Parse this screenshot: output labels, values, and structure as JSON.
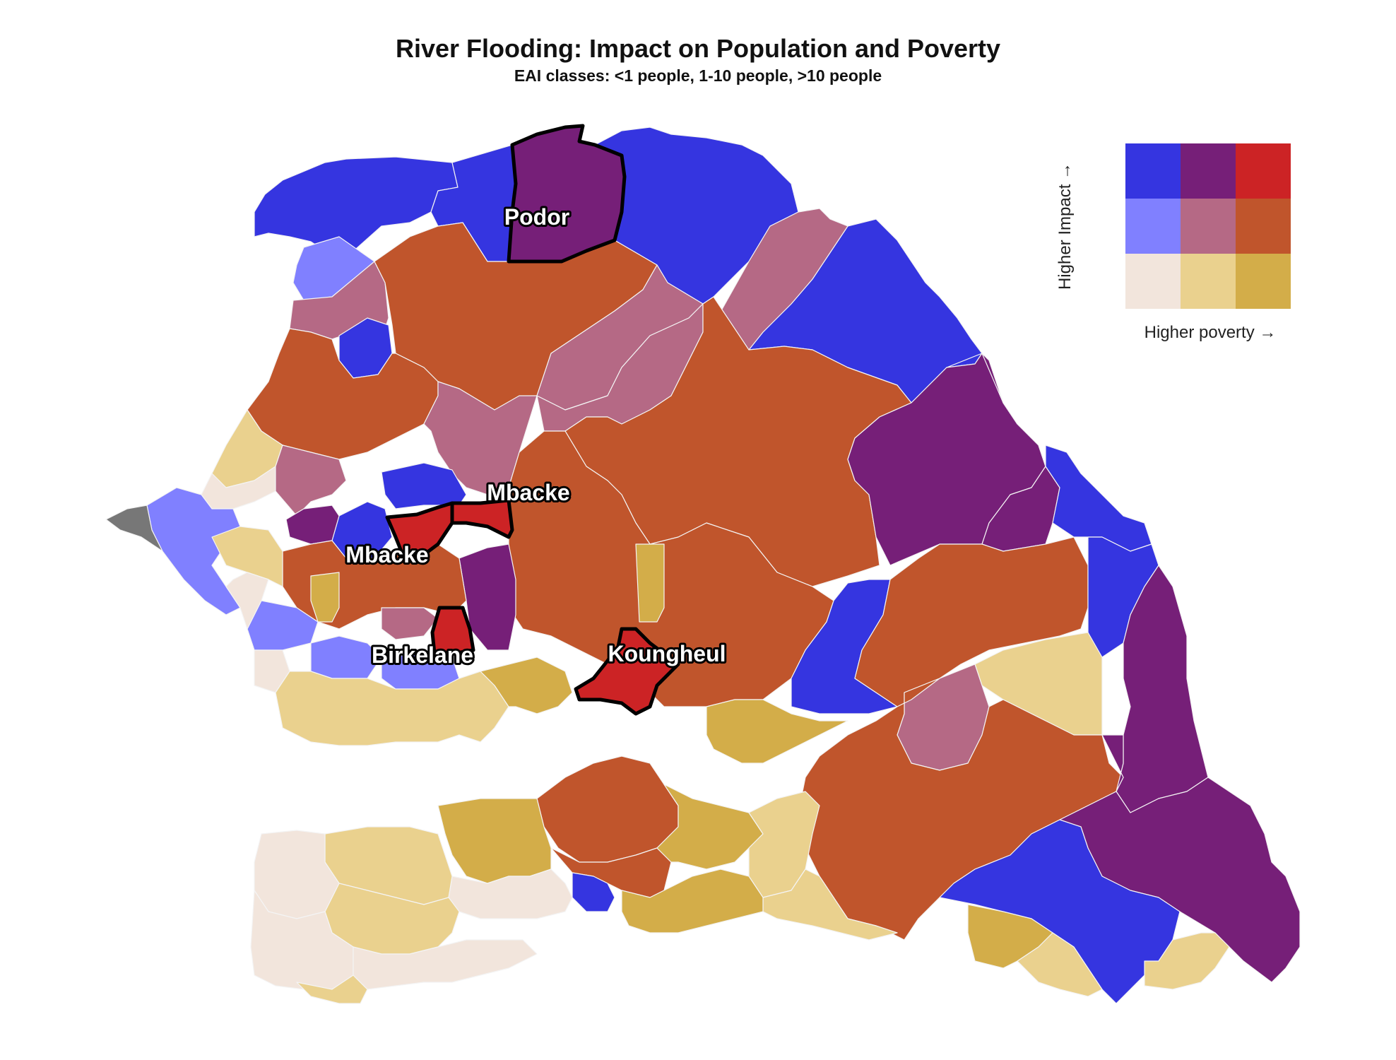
{
  "title": "River Flooding: Impact on Population and Poverty",
  "subtitle": "EAI classes: <1 people, 1-10 people, >10 people",
  "legend": {
    "y_label": "Higher Impact →",
    "x_label": "Higher poverty →",
    "colors": {
      "high_impact_low_poverty": "#3535e0",
      "high_impact_mid_poverty": "#761f78",
      "high_impact_high_poverty": "#cc2325",
      "mid_impact_low_poverty": "#8080ff",
      "mid_impact_mid_poverty": "#b56985",
      "mid_impact_high_poverty": "#c0552c",
      "low_impact_low_poverty": "#f2e5dc",
      "low_impact_mid_poverty": "#ead18e",
      "low_impact_high_poverty": "#d3ad49"
    }
  },
  "highlighted_districts": [
    {
      "name": "Podor"
    },
    {
      "name": "Mbacke"
    },
    {
      "name": "Mbacke"
    },
    {
      "name": "Birkelane"
    },
    {
      "name": "Koungheul"
    }
  ]
}
